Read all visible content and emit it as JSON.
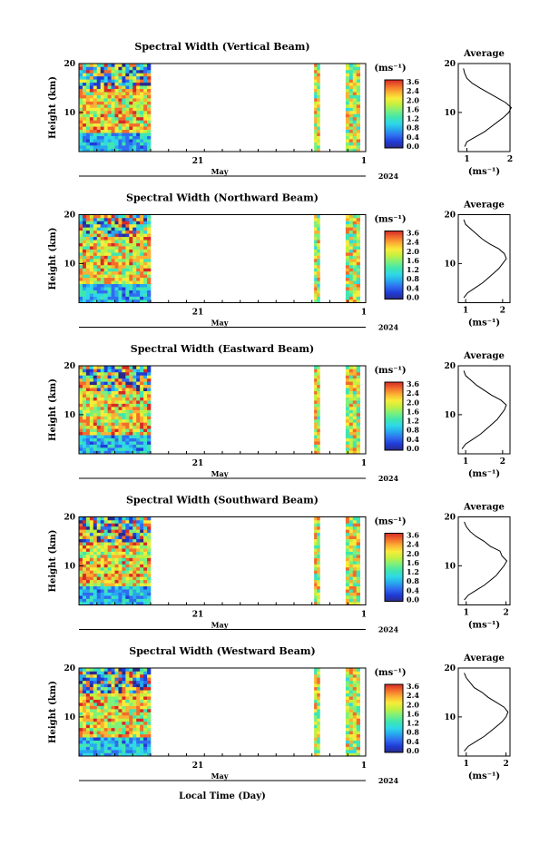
{
  "colors": {
    "colormap": [
      "#2a2a8a",
      "#1f3bd6",
      "#2f6cf0",
      "#27a8ee",
      "#2fd8e6",
      "#3fe6b0",
      "#7ff07a",
      "#c4f040",
      "#f8ec3a",
      "#fbb133",
      "#f26c2c",
      "#d62a26"
    ],
    "line": "#000000",
    "background": "#ffffff"
  },
  "shared": {
    "ylabel": "Height (km)",
    "xtick_labels": [
      "21",
      "1"
    ],
    "xlabel_month": "May",
    "year_label": "2024",
    "xlabel": "Local Time (Day)",
    "colorbar_unit": "(ms⁻¹)",
    "colorbar_ticks": [
      "3.6",
      "2.4",
      "2.0",
      "1.6",
      "1.2",
      "0.8",
      "0.4",
      "0.0"
    ],
    "avg_title": "Average",
    "avg_xlabel": "(ms⁻¹)",
    "avg_xticks": [
      "1",
      "2"
    ],
    "yticks": [
      "20",
      "10"
    ]
  },
  "chart_data": [
    {
      "type": "heatmap",
      "title": "Spectral Width (Vertical Beam)",
      "ylabel": "Height (km)",
      "ylim": [
        2,
        20
      ],
      "data_segments": [
        {
          "x_start": 0.0,
          "x_end": 0.25
        },
        {
          "x_start": 0.82,
          "x_end": 0.84
        },
        {
          "x_start": 0.93,
          "x_end": 0.98
        }
      ],
      "colorbar_range": [
        0,
        3.6
      ],
      "average_profile": {
        "xlim": [
          0.8,
          2.0
        ],
        "heights": [
          3,
          4,
          5,
          6,
          7,
          8,
          9,
          10,
          11,
          12,
          13,
          14,
          15,
          16,
          17,
          18,
          19
        ],
        "values": [
          0.95,
          1.0,
          1.2,
          1.4,
          1.55,
          1.7,
          1.85,
          1.97,
          2.03,
          1.9,
          1.7,
          1.5,
          1.3,
          1.12,
          1.0,
          0.95,
          0.92
        ]
      }
    },
    {
      "type": "heatmap",
      "title": "Spectral Width (Northward Beam)",
      "ylabel": "Height (km)",
      "ylim": [
        2,
        20
      ],
      "data_segments": [
        {
          "x_start": 0.0,
          "x_end": 0.25
        },
        {
          "x_start": 0.82,
          "x_end": 0.84
        },
        {
          "x_start": 0.93,
          "x_end": 0.98
        }
      ],
      "colorbar_range": [
        0,
        3.6
      ],
      "average_profile": {
        "xlim": [
          0.8,
          2.2
        ],
        "heights": [
          3,
          4,
          5,
          6,
          7,
          8,
          9,
          10,
          11,
          12,
          13,
          14,
          15,
          16,
          17,
          18,
          19
        ],
        "values": [
          0.95,
          1.05,
          1.25,
          1.45,
          1.6,
          1.75,
          1.9,
          2.0,
          2.1,
          2.05,
          1.9,
          1.65,
          1.45,
          1.3,
          1.15,
          1.0,
          0.95
        ]
      }
    },
    {
      "type": "heatmap",
      "title": "Spectral Width (Eastward Beam)",
      "ylabel": "Height (km)",
      "ylim": [
        2,
        20
      ],
      "data_segments": [
        {
          "x_start": 0.0,
          "x_end": 0.25
        },
        {
          "x_start": 0.82,
          "x_end": 0.84
        },
        {
          "x_start": 0.93,
          "x_end": 0.98
        }
      ],
      "colorbar_range": [
        0,
        3.6
      ],
      "average_profile": {
        "xlim": [
          0.8,
          2.2
        ],
        "heights": [
          3,
          4,
          5,
          6,
          7,
          8,
          9,
          10,
          11,
          12,
          13,
          14,
          15,
          16,
          17,
          18,
          19
        ],
        "values": [
          0.9,
          1.0,
          1.2,
          1.4,
          1.55,
          1.7,
          1.85,
          1.95,
          2.05,
          2.1,
          1.95,
          1.7,
          1.5,
          1.3,
          1.15,
          1.0,
          0.95
        ]
      }
    },
    {
      "type": "heatmap",
      "title": "Spectral Width (Southward Beam)",
      "ylabel": "Height (km)",
      "ylim": [
        2,
        20
      ],
      "data_segments": [
        {
          "x_start": 0.0,
          "x_end": 0.25
        },
        {
          "x_start": 0.82,
          "x_end": 0.84
        },
        {
          "x_start": 0.93,
          "x_end": 0.98
        }
      ],
      "colorbar_range": [
        0,
        3.6
      ],
      "average_profile": {
        "xlim": [
          0.8,
          2.1
        ],
        "heights": [
          3,
          4,
          5,
          6,
          7,
          8,
          9,
          10,
          11,
          12,
          13,
          14,
          15,
          16,
          17,
          18,
          19
        ],
        "values": [
          0.95,
          1.05,
          1.25,
          1.45,
          1.6,
          1.75,
          1.85,
          1.95,
          2.02,
          1.9,
          1.85,
          1.6,
          1.45,
          1.25,
          1.1,
          1.0,
          0.95
        ]
      }
    },
    {
      "type": "heatmap",
      "title": "Spectral Width (Westward Beam)",
      "ylabel": "Height (km)",
      "ylim": [
        2,
        20
      ],
      "data_segments": [
        {
          "x_start": 0.0,
          "x_end": 0.25
        },
        {
          "x_start": 0.82,
          "x_end": 0.84
        },
        {
          "x_start": 0.93,
          "x_end": 0.98
        }
      ],
      "colorbar_range": [
        0,
        3.6
      ],
      "average_profile": {
        "xlim": [
          0.8,
          2.1
        ],
        "heights": [
          3,
          4,
          5,
          6,
          7,
          8,
          9,
          10,
          11,
          12,
          13,
          14,
          15,
          16,
          17,
          18,
          19
        ],
        "values": [
          0.95,
          1.05,
          1.25,
          1.45,
          1.6,
          1.75,
          1.9,
          2.0,
          2.05,
          1.95,
          1.75,
          1.55,
          1.4,
          1.2,
          1.1,
          1.0,
          0.95
        ]
      }
    }
  ]
}
